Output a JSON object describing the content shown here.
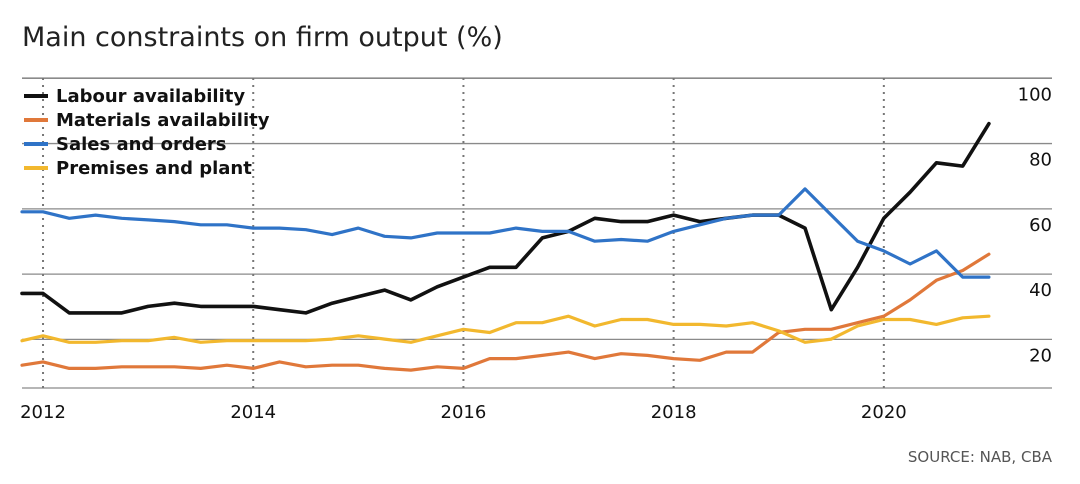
{
  "chart_data": {
    "type": "line",
    "title": "Main constraints on firm output (%)",
    "source": "SOURCE: NAB, CBA",
    "xlabel": "",
    "ylabel": "",
    "xlim": [
      2011.8,
      2021.6
    ],
    "ylim": [
      10,
      105
    ],
    "x_ticks": [
      "2012",
      "2014",
      "2016",
      "2018",
      "2020"
    ],
    "x_tick_values": [
      2012,
      2014,
      2016,
      2018,
      2020
    ],
    "y_ticks": [
      "20",
      "40",
      "60",
      "80",
      "100"
    ],
    "y_tick_values": [
      20,
      40,
      60,
      80,
      100
    ],
    "grid": true,
    "legend_position": "top-left",
    "series": [
      {
        "name": "Labour availability",
        "color": "#111111",
        "x": [
          2011.8,
          2012.0,
          2012.25,
          2012.5,
          2012.75,
          2013.0,
          2013.25,
          2013.5,
          2013.75,
          2014.0,
          2014.25,
          2014.5,
          2014.75,
          2015.0,
          2015.25,
          2015.5,
          2015.75,
          2016.0,
          2016.25,
          2016.5,
          2016.75,
          2017.0,
          2017.25,
          2017.5,
          2017.75,
          2018.0,
          2018.25,
          2018.5,
          2018.75,
          2019.0,
          2019.25,
          2019.5,
          2019.75,
          2020.0,
          2020.25,
          2020.5,
          2020.75,
          2021.0
        ],
        "values": [
          39,
          39,
          33,
          33,
          33,
          35,
          36,
          35,
          35,
          35,
          34,
          33,
          36,
          38,
          40,
          37,
          41,
          44,
          47,
          47,
          56,
          58,
          62,
          61,
          61,
          63,
          61,
          62,
          63,
          63,
          59,
          34,
          47,
          62,
          70,
          79,
          78,
          91
        ]
      },
      {
        "name": "Materials availability",
        "color": "#e0783a",
        "x": [
          2011.8,
          2012.0,
          2012.25,
          2012.5,
          2012.75,
          2013.0,
          2013.25,
          2013.5,
          2013.75,
          2014.0,
          2014.25,
          2014.5,
          2014.75,
          2015.0,
          2015.25,
          2015.5,
          2015.75,
          2016.0,
          2016.25,
          2016.5,
          2016.75,
          2017.0,
          2017.25,
          2017.5,
          2017.75,
          2018.0,
          2018.25,
          2018.5,
          2018.75,
          2019.0,
          2019.25,
          2019.5,
          2019.75,
          2020.0,
          2020.25,
          2020.5,
          2020.75,
          2021.0
        ],
        "values": [
          17,
          18,
          16,
          16,
          16.5,
          16.5,
          16.5,
          16,
          17,
          16,
          18,
          16.5,
          17,
          17,
          16,
          15.5,
          16.5,
          16,
          19,
          19,
          20,
          21,
          19,
          20.5,
          20,
          19,
          18.5,
          21,
          21,
          27,
          28,
          28,
          30,
          32,
          37,
          43,
          46,
          51
        ]
      },
      {
        "name": "Sales and orders",
        "color": "#2f73c7",
        "x": [
          2011.8,
          2012.0,
          2012.25,
          2012.5,
          2012.75,
          2013.0,
          2013.25,
          2013.5,
          2013.75,
          2014.0,
          2014.25,
          2014.5,
          2014.75,
          2015.0,
          2015.25,
          2015.5,
          2015.75,
          2016.0,
          2016.25,
          2016.5,
          2016.75,
          2017.0,
          2017.25,
          2017.5,
          2017.75,
          2018.0,
          2018.25,
          2018.5,
          2018.75,
          2019.0,
          2019.25,
          2019.5,
          2019.75,
          2020.0,
          2020.25,
          2020.5,
          2020.75,
          2021.0
        ],
        "values": [
          64,
          64,
          62,
          63,
          62,
          61.5,
          61,
          60,
          60,
          59,
          59,
          58.5,
          57,
          59,
          56.5,
          56,
          57.5,
          57.5,
          57.5,
          59,
          58,
          58,
          55,
          55.5,
          55,
          58,
          60,
          62,
          63,
          63,
          71,
          63,
          55,
          52,
          48,
          52,
          44,
          44
        ]
      },
      {
        "name": "Premises and plant",
        "color": "#f2b82e",
        "x": [
          2011.8,
          2012.0,
          2012.25,
          2012.5,
          2012.75,
          2013.0,
          2013.25,
          2013.5,
          2013.75,
          2014.0,
          2014.25,
          2014.5,
          2014.75,
          2015.0,
          2015.25,
          2015.5,
          2015.75,
          2016.0,
          2016.25,
          2016.5,
          2016.75,
          2017.0,
          2017.25,
          2017.5,
          2017.75,
          2018.0,
          2018.25,
          2018.5,
          2018.75,
          2019.0,
          2019.25,
          2019.5,
          2019.75,
          2020.0,
          2020.25,
          2020.5,
          2020.75,
          2021.0
        ],
        "values": [
          24.5,
          26,
          24,
          24,
          24.5,
          24.5,
          25.5,
          24,
          24.5,
          24.5,
          24.5,
          24.5,
          25,
          26,
          25,
          24,
          26,
          28,
          27,
          30,
          30,
          32,
          29,
          31,
          31,
          29.5,
          29.5,
          29,
          30,
          27.5,
          24,
          25,
          29,
          31,
          31,
          29.5,
          31.5,
          32
        ]
      }
    ]
  }
}
